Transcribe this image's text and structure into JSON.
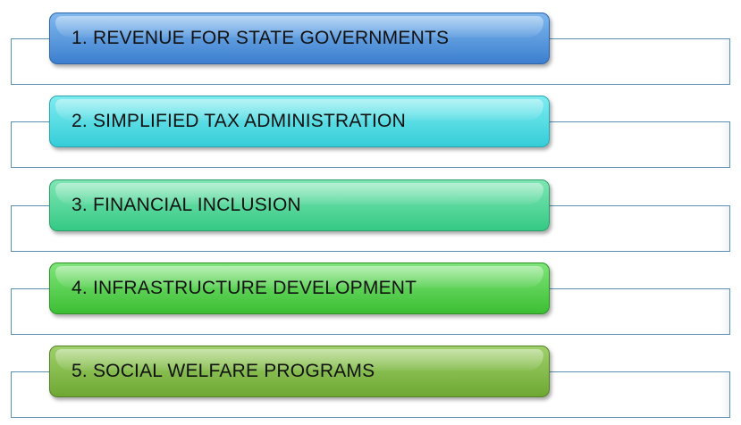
{
  "items": [
    {
      "label": "1. REVENUE FOR STATE GOVERNMENTS",
      "color_top": "#7fb8ee",
      "color_bottom": "#3d7fcf",
      "border": "#2e64a8"
    },
    {
      "label": "2. SIMPLIFIED TAX ADMINISTRATION",
      "color_top": "#7eecf0",
      "color_bottom": "#35cdd8",
      "border": "#2aa5ae"
    },
    {
      "label": "3. FINANCIAL INCLUSION",
      "color_top": "#7fe6b4",
      "color_bottom": "#35c985",
      "border": "#2a9e68"
    },
    {
      "label": "4. INFRASTRUCTURE DEVELOPMENT",
      "color_top": "#7fe47a",
      "color_bottom": "#3cbf33",
      "border": "#2e9227"
    },
    {
      "label": "5. SOCIAL WELFARE PROGRAMS",
      "color_top": "#9fd06a",
      "color_bottom": "#6ea833",
      "border": "#557f28"
    }
  ]
}
